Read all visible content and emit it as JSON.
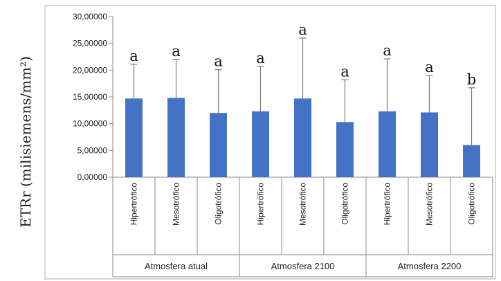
{
  "chart_data": {
    "type": "bar",
    "ylabel": "ETRr (milisiemens/mm²)",
    "ylim": [
      0,
      30
    ],
    "yticks": [
      "0,00000",
      "5,00000",
      "10,00000",
      "15,00000",
      "20,00000",
      "25,00000",
      "30,00000"
    ],
    "grid": false,
    "legend": "none",
    "bar_color": "#4472c4",
    "groups": [
      {
        "label": "Atmosfera atual",
        "bars": [
          {
            "category": "Hipertrófico",
            "value": 14.7,
            "error_upper": 21.1,
            "letter": "a"
          },
          {
            "category": "Mesotrófico",
            "value": 14.8,
            "error_upper": 22.0,
            "letter": "a"
          },
          {
            "category": "Oligotrófico",
            "value": 12.0,
            "error_upper": 20.1,
            "letter": "a"
          }
        ]
      },
      {
        "label": "Atmosfera 2100",
        "bars": [
          {
            "category": "Hipertrófico",
            "value": 12.3,
            "error_upper": 20.7,
            "letter": "a"
          },
          {
            "category": "Mesotrófico",
            "value": 14.7,
            "error_upper": 26.0,
            "letter": "a"
          },
          {
            "category": "Oligotrófico",
            "value": 10.3,
            "error_upper": 18.2,
            "letter": "a"
          }
        ]
      },
      {
        "label": "Atmosfera 2200",
        "bars": [
          {
            "category": "Hipertrófico",
            "value": 12.3,
            "error_upper": 22.1,
            "letter": "a"
          },
          {
            "category": "Mesotrófico",
            "value": 12.1,
            "error_upper": 19.0,
            "letter": "a"
          },
          {
            "category": "Oligotrófico",
            "value": 6.0,
            "error_upper": 16.7,
            "letter": "b"
          }
        ]
      }
    ]
  }
}
